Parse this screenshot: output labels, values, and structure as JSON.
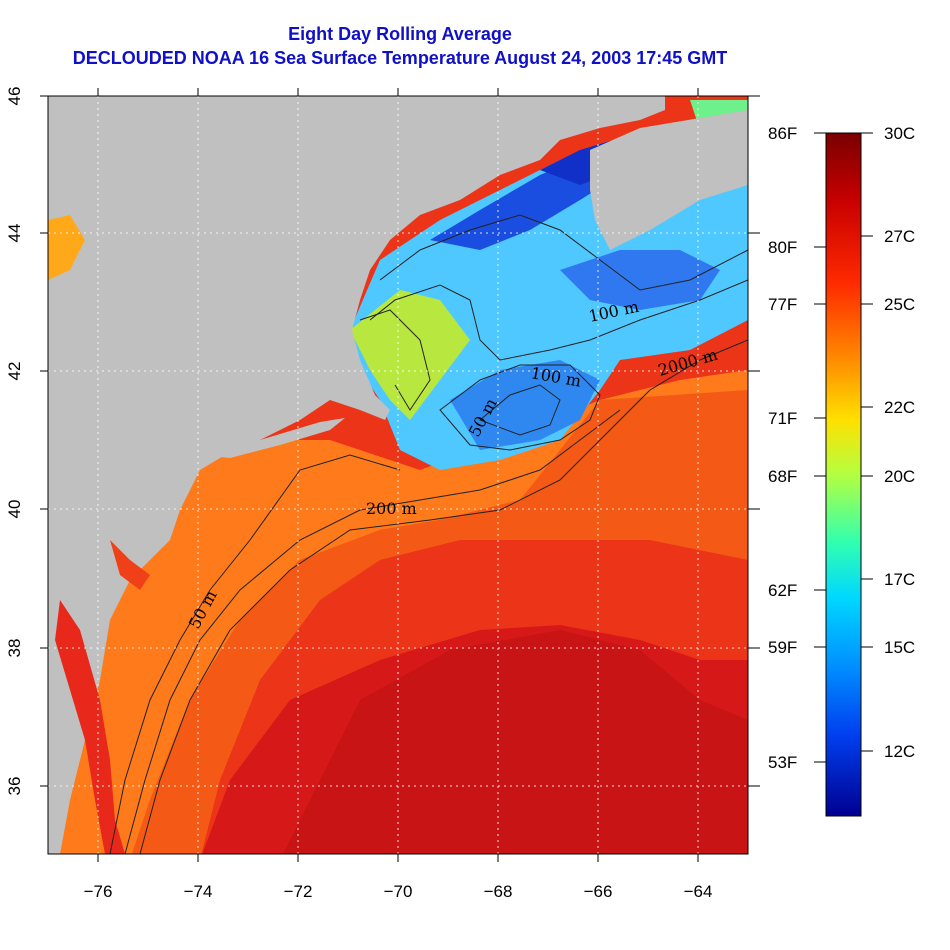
{
  "title_line1": "Eight Day Rolling Average",
  "title_line2": "DECLOUDED NOAA 16 Sea Surface Temperature August 24, 2003 17:45 GMT",
  "map": {
    "lon_range": [
      -77,
      -63
    ],
    "lat_range": [
      35,
      46
    ],
    "lon_ticks": [
      "−76",
      "−74",
      "−72",
      "−70",
      "−68",
      "−66",
      "−64"
    ],
    "lat_ticks": [
      "36",
      "38",
      "40",
      "42",
      "44",
      "46"
    ],
    "contour_labels": [
      "50 m",
      "200 m",
      "2000 m",
      "100 m",
      "100 m",
      "50 m"
    ],
    "colors": {
      "land": "#c0c0c0",
      "warm_ocean": "#e8281a",
      "gulf_stream": "#c8141a",
      "cool_water": "#1e90ff",
      "cold_water": "#1a2ed8"
    }
  },
  "colorbar": {
    "fahrenheit_labels": [
      "86F",
      "80F",
      "77F",
      "71F",
      "68F",
      "62F",
      "59F",
      "53F"
    ],
    "celsius_labels": [
      "30C",
      "27C",
      "25C",
      "22C",
      "20C",
      "17C",
      "15C",
      "12C"
    ],
    "palette": [
      "#7a0000",
      "#b40000",
      "#e00000",
      "#ff3300",
      "#ff6a00",
      "#ff9a00",
      "#ffc800",
      "#ffff00",
      "#b8ff3a",
      "#55ff9a",
      "#00f0ff",
      "#00b0ff",
      "#0070ff",
      "#0030e0",
      "#001ab0",
      "#000090"
    ]
  }
}
